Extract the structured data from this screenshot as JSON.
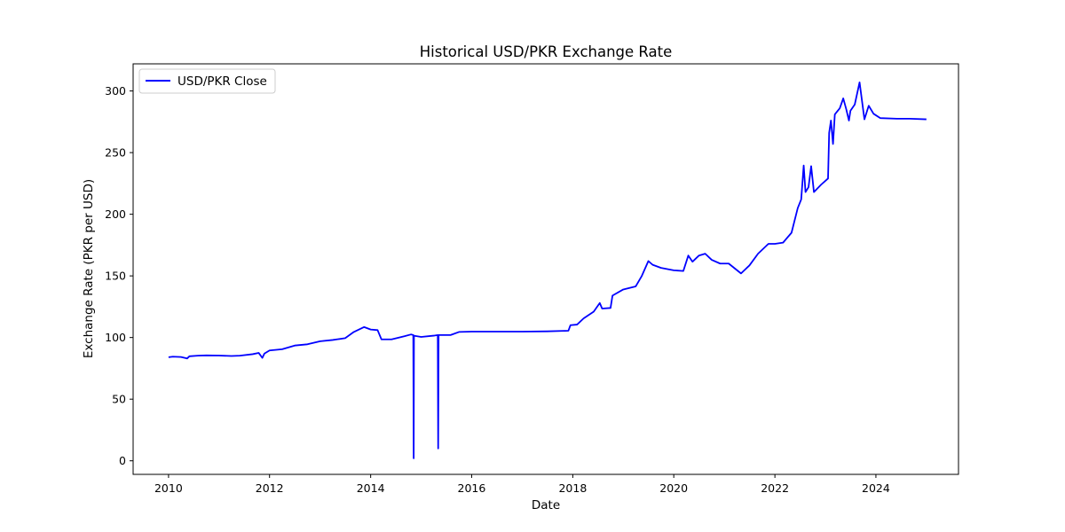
{
  "chart_data": {
    "type": "line",
    "title": "Historical USD/PKR Exchange Rate",
    "xlabel": "Date",
    "ylabel": "Exchange Rate (PKR per USD)",
    "xlim": [
      "2009-04-20",
      "2025-08-20"
    ],
    "ylim": [
      -11,
      322
    ],
    "x_ticks": [
      "2010",
      "2012",
      "2014",
      "2016",
      "2018",
      "2020",
      "2022",
      "2024"
    ],
    "y_ticks": [
      0,
      50,
      100,
      150,
      200,
      250,
      300
    ],
    "grid": false,
    "legend": {
      "placement": "top-left",
      "entries": [
        "USD/PKR Close"
      ]
    },
    "series": [
      {
        "name": "USD/PKR Close",
        "color": "#0000ff",
        "points": [
          [
            "2010-01-01",
            84.0
          ],
          [
            "2010-02-01",
            84.5
          ],
          [
            "2010-04-01",
            84.2
          ],
          [
            "2010-05-15",
            83.0
          ],
          [
            "2010-06-01",
            84.8
          ],
          [
            "2010-08-01",
            85.3
          ],
          [
            "2010-10-01",
            85.5
          ],
          [
            "2011-01-01",
            85.4
          ],
          [
            "2011-04-01",
            85.0
          ],
          [
            "2011-06-01",
            85.3
          ],
          [
            "2011-09-01",
            86.5
          ],
          [
            "2011-10-15",
            87.5
          ],
          [
            "2011-11-10",
            83.5
          ],
          [
            "2011-11-25",
            87.0
          ],
          [
            "2012-01-01",
            89.5
          ],
          [
            "2012-04-01",
            90.5
          ],
          [
            "2012-07-01",
            93.5
          ],
          [
            "2012-10-01",
            94.5
          ],
          [
            "2013-01-01",
            97.0
          ],
          [
            "2013-04-01",
            98.0
          ],
          [
            "2013-07-01",
            99.5
          ],
          [
            "2013-09-01",
            104.5
          ],
          [
            "2013-11-15",
            108.5
          ],
          [
            "2014-01-01",
            106.5
          ],
          [
            "2014-02-20",
            106.0
          ],
          [
            "2014-03-20",
            98.5
          ],
          [
            "2014-06-01",
            98.5
          ],
          [
            "2014-09-01",
            101.0
          ],
          [
            "2014-10-20",
            102.5
          ],
          [
            "2014-11-05",
            102.0
          ],
          [
            "2014-11-08",
            2.0
          ],
          [
            "2014-11-10",
            101.5
          ],
          [
            "2015-01-01",
            100.5
          ],
          [
            "2015-04-01",
            101.5
          ],
          [
            "2015-05-01",
            102.0
          ],
          [
            "2015-05-04",
            10.0
          ],
          [
            "2015-05-07",
            102.0
          ],
          [
            "2015-08-01",
            102.0
          ],
          [
            "2015-10-01",
            104.5
          ],
          [
            "2016-01-01",
            104.8
          ],
          [
            "2016-07-01",
            104.8
          ],
          [
            "2017-01-01",
            104.8
          ],
          [
            "2017-07-01",
            105.0
          ],
          [
            "2017-11-30",
            105.5
          ],
          [
            "2017-12-15",
            110.0
          ],
          [
            "2018-02-01",
            110.5
          ],
          [
            "2018-03-20",
            115.5
          ],
          [
            "2018-06-01",
            121.0
          ],
          [
            "2018-07-15",
            128.0
          ],
          [
            "2018-08-01",
            123.5
          ],
          [
            "2018-10-01",
            124.0
          ],
          [
            "2018-10-15",
            134.0
          ],
          [
            "2019-01-01",
            139.0
          ],
          [
            "2019-04-01",
            141.5
          ],
          [
            "2019-05-15",
            150.0
          ],
          [
            "2019-07-01",
            162.0
          ],
          [
            "2019-08-01",
            159.0
          ],
          [
            "2019-10-01",
            156.5
          ],
          [
            "2020-01-01",
            154.5
          ],
          [
            "2020-03-10",
            154.0
          ],
          [
            "2020-04-15",
            166.5
          ],
          [
            "2020-05-15",
            161.5
          ],
          [
            "2020-07-01",
            166.5
          ],
          [
            "2020-08-15",
            168.0
          ],
          [
            "2020-10-01",
            163.0
          ],
          [
            "2020-12-01",
            160.0
          ],
          [
            "2021-02-01",
            160.0
          ],
          [
            "2021-05-01",
            152.0
          ],
          [
            "2021-07-01",
            158.5
          ],
          [
            "2021-09-01",
            168.0
          ],
          [
            "2021-11-15",
            176.0
          ],
          [
            "2022-01-01",
            176.0
          ],
          [
            "2022-03-01",
            177.0
          ],
          [
            "2022-05-01",
            185.0
          ],
          [
            "2022-06-15",
            205.0
          ],
          [
            "2022-07-10",
            212.0
          ],
          [
            "2022-07-28",
            239.5
          ],
          [
            "2022-08-10",
            218.0
          ],
          [
            "2022-09-01",
            222.0
          ],
          [
            "2022-09-20",
            239.0
          ],
          [
            "2022-10-10",
            218.0
          ],
          [
            "2022-12-01",
            224.0
          ],
          [
            "2023-01-20",
            229.0
          ],
          [
            "2023-01-28",
            266.0
          ],
          [
            "2023-02-10",
            276.0
          ],
          [
            "2023-02-25",
            257.0
          ],
          [
            "2023-03-10",
            281.0
          ],
          [
            "2023-04-15",
            286.0
          ],
          [
            "2023-05-10",
            294.0
          ],
          [
            "2023-06-01",
            285.0
          ],
          [
            "2023-06-20",
            276.0
          ],
          [
            "2023-07-01",
            284.0
          ],
          [
            "2023-08-01",
            289.0
          ],
          [
            "2023-09-05",
            307.0
          ],
          [
            "2023-10-10",
            277.0
          ],
          [
            "2023-11-10",
            288.0
          ],
          [
            "2023-12-15",
            281.5
          ],
          [
            "2024-02-01",
            278.0
          ],
          [
            "2024-06-01",
            277.5
          ],
          [
            "2024-09-01",
            277.5
          ],
          [
            "2024-12-31",
            277.0
          ]
        ]
      }
    ]
  }
}
